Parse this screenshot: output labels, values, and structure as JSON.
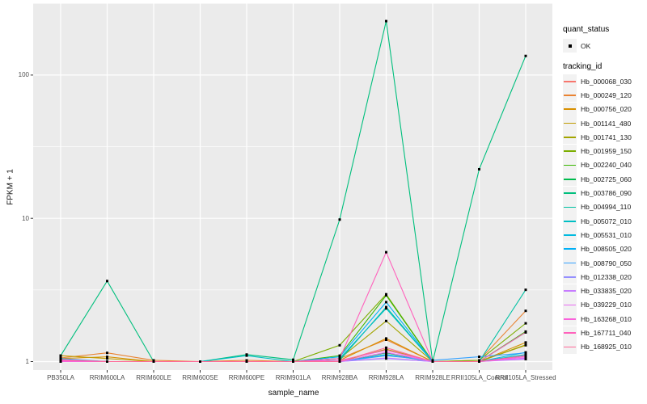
{
  "figure": {
    "bg": "#FFFFFF",
    "panel_bg": "#EBEBEB",
    "grid_color": "#FFFFFF",
    "tick_color": "#333333",
    "tick_label_color": "#4D4D4D",
    "point_color": "#000000"
  },
  "axes": {
    "x_title": "sample_name",
    "y_title": "FPKM + 1"
  },
  "legend": {
    "quant_title": "quant_status",
    "quant_items": [
      {
        "label": "OK"
      }
    ],
    "tracking_title": "tracking_id"
  },
  "chart_data": {
    "type": "line",
    "title": "",
    "xlabel": "sample_name",
    "ylabel": "FPKM + 1",
    "y_scale": "log10",
    "ylim": [
      0.87,
      320
    ],
    "y_major_ticks": [
      1,
      10,
      100
    ],
    "y_minor_ticks": [
      3.162,
      31.62,
      316.2
    ],
    "grid": true,
    "legend_position": "right",
    "point_marker": {
      "shape": "square",
      "color": "#000000",
      "size": 3
    },
    "quant_status": {
      "title": "quant_status",
      "levels": [
        "OK"
      ]
    },
    "categories": [
      "PB350LA",
      "RRIM600LA",
      "RRIM600LE",
      "RRIM600SE",
      "RRIM600PE",
      "RRIM901LA",
      "RRIM928BA",
      "RRIM928LA",
      "RRIM928LE",
      "RRII105LA_Control",
      "RRII105LA_Stressed"
    ],
    "series": [
      {
        "name": "Hb_000068_030",
        "color": "#F8766D",
        "values": [
          1.02,
          1.0,
          1.0,
          1.0,
          1.0,
          1.0,
          1.0,
          1.12,
          1.0,
          1.0,
          1.1
        ]
      },
      {
        "name": "Hb_000249_120",
        "color": "#EA8331",
        "values": [
          1.06,
          1.15,
          1.02,
          1.0,
          1.02,
          1.0,
          1.05,
          1.42,
          1.0,
          1.02,
          2.26
        ]
      },
      {
        "name": "Hb_000756_020",
        "color": "#D89000",
        "values": [
          1.05,
          1.08,
          1.0,
          1.0,
          1.0,
          1.0,
          1.02,
          1.45,
          1.0,
          1.0,
          1.36
        ]
      },
      {
        "name": "Hb_001141_480",
        "color": "#C09B00",
        "values": [
          1.1,
          1.05,
          1.0,
          1.0,
          1.0,
          1.0,
          1.0,
          1.22,
          1.0,
          1.0,
          1.3
        ]
      },
      {
        "name": "Hb_001741_130",
        "color": "#A3A500",
        "values": [
          1.03,
          1.0,
          1.0,
          1.0,
          1.0,
          1.0,
          1.05,
          1.92,
          1.0,
          1.0,
          1.31
        ]
      },
      {
        "name": "Hb_001959_150",
        "color": "#7CAE00",
        "values": [
          1.02,
          1.0,
          1.0,
          1.0,
          1.0,
          1.0,
          1.3,
          2.95,
          1.0,
          1.02,
          1.85
        ]
      },
      {
        "name": "Hb_002240_040",
        "color": "#39B600",
        "values": [
          1.0,
          1.0,
          1.0,
          1.0,
          1.0,
          1.0,
          1.1,
          2.9,
          1.0,
          1.0,
          1.62
        ]
      },
      {
        "name": "Hb_002725_060",
        "color": "#00BB4E",
        "values": [
          1.02,
          1.0,
          1.0,
          1.0,
          1.0,
          1.0,
          1.0,
          1.15,
          1.0,
          1.0,
          1.6
        ]
      },
      {
        "name": "Hb_003786_090",
        "color": "#00BF7D",
        "values": [
          1.1,
          3.65,
          1.0,
          1.0,
          1.12,
          1.03,
          9.8,
          238,
          1.0,
          22,
          136
        ]
      },
      {
        "name": "Hb_004994_110",
        "color": "#00C1A3",
        "values": [
          1.02,
          1.0,
          1.0,
          1.0,
          1.0,
          1.0,
          1.02,
          2.4,
          1.0,
          1.0,
          3.17
        ]
      },
      {
        "name": "Hb_005072_010",
        "color": "#00BFC4",
        "values": [
          1.03,
          1.0,
          1.0,
          1.0,
          1.1,
          1.0,
          1.05,
          2.35,
          1.0,
          1.0,
          1.12
        ]
      },
      {
        "name": "Hb_005531_010",
        "color": "#00BAE0",
        "values": [
          1.02,
          1.0,
          1.0,
          1.0,
          1.0,
          1.0,
          1.0,
          1.12,
          1.0,
          1.0,
          1.16
        ]
      },
      {
        "name": "Hb_008505_020",
        "color": "#00B0F6",
        "values": [
          1.02,
          1.0,
          1.0,
          1.0,
          1.0,
          1.0,
          1.08,
          2.6,
          1.0,
          1.0,
          1.1
        ]
      },
      {
        "name": "Hb_008790_050",
        "color": "#35A2FF",
        "values": [
          1.05,
          1.0,
          1.0,
          1.0,
          1.0,
          1.0,
          1.0,
          1.1,
          1.02,
          1.08,
          1.15
        ]
      },
      {
        "name": "Hb_012338_020",
        "color": "#9590FF",
        "values": [
          1.0,
          1.0,
          1.0,
          1.0,
          1.0,
          1.0,
          1.0,
          1.05,
          1.0,
          1.0,
          1.05
        ]
      },
      {
        "name": "Hb_033835_020",
        "color": "#C77CFF",
        "values": [
          1.0,
          1.0,
          1.0,
          1.0,
          1.0,
          1.0,
          1.0,
          1.06,
          1.0,
          1.0,
          1.04
        ]
      },
      {
        "name": "Hb_039229_010",
        "color": "#E76BF3",
        "values": [
          1.01,
          1.0,
          1.0,
          1.0,
          1.0,
          1.0,
          1.0,
          1.16,
          1.0,
          1.0,
          1.06
        ]
      },
      {
        "name": "Hb_163268_010",
        "color": "#FA62DB",
        "values": [
          1.0,
          1.0,
          1.0,
          1.0,
          1.0,
          1.0,
          1.02,
          1.2,
          1.0,
          1.0,
          1.08
        ]
      },
      {
        "name": "Hb_167711_040",
        "color": "#FF62BC",
        "values": [
          1.02,
          1.0,
          1.0,
          1.0,
          1.0,
          1.0,
          1.05,
          5.8,
          1.0,
          1.0,
          1.6
        ]
      },
      {
        "name": "Hb_168925_010",
        "color": "#FF6A98",
        "values": [
          1.03,
          1.0,
          1.0,
          1.0,
          1.0,
          1.0,
          1.0,
          1.25,
          1.0,
          1.0,
          1.1
        ]
      }
    ]
  }
}
